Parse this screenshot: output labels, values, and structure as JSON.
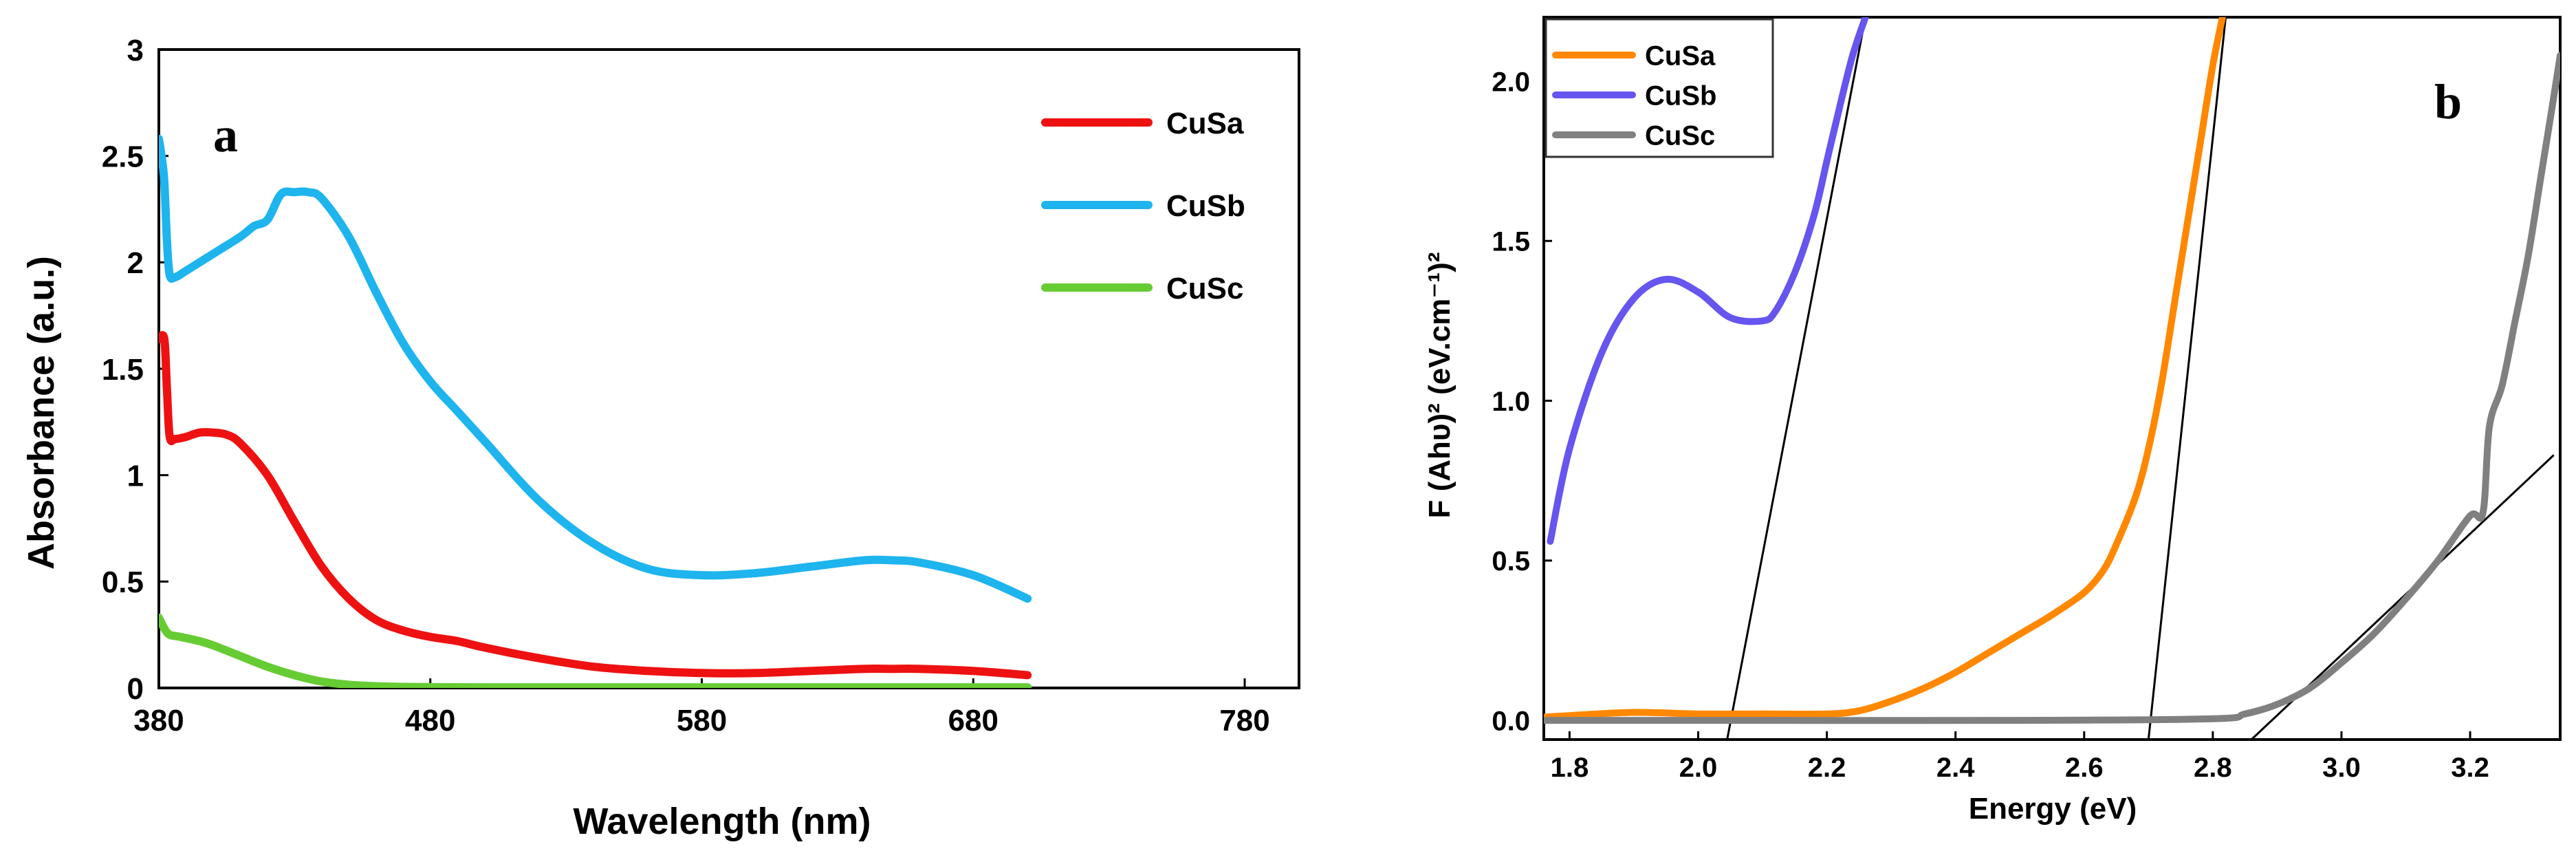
{
  "chart_data": [
    {
      "id": "a",
      "type": "line",
      "panel_label": "a",
      "xlabel": "Wavelength (nm)",
      "ylabel": "Absorbance (a.u.)",
      "xlim": [
        380,
        800
      ],
      "ylim": [
        0,
        3
      ],
      "xticks": [
        380,
        480,
        580,
        680,
        780
      ],
      "xtick_labels": [
        "380",
        "480",
        "580",
        "680",
        "780"
      ],
      "yticks": [
        0,
        0.5,
        1,
        1.5,
        2,
        2.5,
        3
      ],
      "ytick_labels": [
        "0",
        "0.5",
        "1",
        "1.5",
        "2",
        "2.5",
        "3"
      ],
      "grid": false,
      "legend": "top-right",
      "series": [
        {
          "name": "CuSa",
          "color": "#ee1111",
          "x": [
            380,
            382,
            383,
            384,
            386,
            390,
            395,
            400,
            405,
            410,
            420,
            430,
            440,
            450,
            460,
            470,
            480,
            490,
            500,
            520,
            540,
            560,
            580,
            600,
            620,
            640,
            650,
            660,
            680,
            700
          ],
          "y": [
            1.64,
            1.64,
            1.4,
            1.18,
            1.17,
            1.18,
            1.2,
            1.2,
            1.19,
            1.15,
            1.0,
            0.78,
            0.57,
            0.42,
            0.32,
            0.27,
            0.24,
            0.22,
            0.19,
            0.14,
            0.1,
            0.08,
            0.07,
            0.07,
            0.08,
            0.09,
            0.09,
            0.09,
            0.08,
            0.06
          ]
        },
        {
          "name": "CuSb",
          "color": "#1eb4ee",
          "x": [
            380,
            381,
            382,
            383,
            384,
            386,
            390,
            400,
            410,
            415,
            420,
            425,
            430,
            435,
            440,
            450,
            460,
            470,
            480,
            490,
            500,
            520,
            540,
            560,
            580,
            600,
            620,
            640,
            650,
            660,
            680,
            700
          ],
          "y": [
            2.58,
            2.5,
            2.38,
            2.1,
            1.94,
            1.93,
            1.96,
            2.04,
            2.12,
            2.17,
            2.2,
            2.32,
            2.33,
            2.33,
            2.3,
            2.12,
            1.86,
            1.62,
            1.44,
            1.3,
            1.16,
            0.88,
            0.68,
            0.56,
            0.53,
            0.54,
            0.57,
            0.6,
            0.6,
            0.59,
            0.53,
            0.42
          ]
        },
        {
          "name": "CuSc",
          "color": "#66cc33",
          "x": [
            380,
            382,
            384,
            388,
            395,
            400,
            410,
            420,
            430,
            440,
            450,
            460,
            470,
            480,
            500,
            550,
            600,
            650,
            700
          ],
          "y": [
            0.33,
            0.28,
            0.25,
            0.24,
            0.22,
            0.2,
            0.15,
            0.1,
            0.06,
            0.03,
            0.015,
            0.008,
            0.005,
            0.004,
            0.003,
            0.003,
            0.003,
            0.003,
            0.003
          ]
        }
      ]
    },
    {
      "id": "b",
      "type": "line",
      "panel_label": "b",
      "xlabel": "Energy (eV)",
      "ylabel": "F (Ahυ)² (eV.cm⁻¹)²",
      "xlim": [
        1.76,
        3.34
      ],
      "ylim": [
        -0.06,
        2.2
      ],
      "xticks": [
        1.8,
        2.0,
        2.2,
        2.4,
        2.6,
        2.8,
        3.0,
        3.2
      ],
      "xtick_labels": [
        "1.8",
        "2.0",
        "2.2",
        "2.4",
        "2.6",
        "2.8",
        "3.0",
        "3.2"
      ],
      "yticks": [
        0.0,
        0.5,
        1.0,
        1.5,
        2.0
      ],
      "ytick_labels": [
        "0.0",
        "0.5",
        "1.0",
        "1.5",
        "2.0"
      ],
      "grid": false,
      "legend": "top-left",
      "series": [
        {
          "name": "CuSa",
          "color": "#ff8800",
          "x": [
            1.76,
            1.8,
            1.9,
            2.0,
            2.1,
            2.2,
            2.25,
            2.3,
            2.35,
            2.4,
            2.45,
            2.5,
            2.55,
            2.6,
            2.63,
            2.65,
            2.68,
            2.7,
            2.72,
            2.74,
            2.76,
            2.78,
            2.8,
            2.815
          ],
          "y": [
            0.01,
            0.015,
            0.025,
            0.02,
            0.02,
            0.02,
            0.03,
            0.06,
            0.1,
            0.15,
            0.21,
            0.27,
            0.33,
            0.4,
            0.47,
            0.55,
            0.7,
            0.85,
            1.05,
            1.3,
            1.55,
            1.8,
            2.05,
            2.2
          ]
        },
        {
          "name": "CuSb",
          "color": "#6655ee",
          "x": [
            1.77,
            1.8,
            1.85,
            1.9,
            1.95,
            2.0,
            2.05,
            2.1,
            2.12,
            2.15,
            2.18,
            2.2,
            2.22,
            2.24,
            2.26
          ],
          "y": [
            0.56,
            0.85,
            1.15,
            1.32,
            1.38,
            1.34,
            1.26,
            1.25,
            1.28,
            1.4,
            1.58,
            1.75,
            1.92,
            2.08,
            2.2
          ]
        },
        {
          "name": "CuSc",
          "color": "#808080",
          "x": [
            1.76,
            2.0,
            2.5,
            2.8,
            2.85,
            2.9,
            2.95,
            3.0,
            3.05,
            3.1,
            3.15,
            3.2,
            3.22,
            3.23,
            3.25,
            3.27,
            3.29,
            3.31,
            3.33,
            3.34
          ],
          "y": [
            0.0,
            0.0,
            0.0,
            0.005,
            0.02,
            0.05,
            0.1,
            0.18,
            0.27,
            0.38,
            0.5,
            0.64,
            0.65,
            0.92,
            1.05,
            1.25,
            1.45,
            1.7,
            1.95,
            2.08
          ]
        }
      ],
      "tangent_lines": [
        {
          "label": "CuSb",
          "x": [
            2.045,
            2.26
          ],
          "y": [
            -0.06,
            2.2
          ]
        },
        {
          "label": "CuSa",
          "x": [
            2.7,
            2.82
          ],
          "y": [
            -0.06,
            2.2
          ]
        },
        {
          "label": "CuSc",
          "x": [
            2.86,
            3.33
          ],
          "y": [
            -0.06,
            0.83
          ]
        }
      ]
    }
  ]
}
